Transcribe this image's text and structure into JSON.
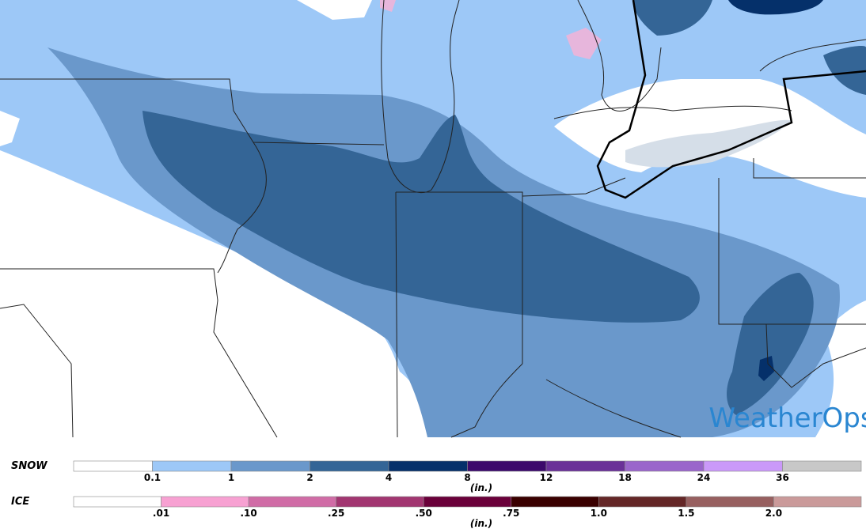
{
  "map": {
    "logo": "WeatherOps"
  },
  "legends": [
    {
      "title": "SNOW",
      "unit": "(in.)",
      "ticks": [
        "0.1",
        "1",
        "2",
        "4",
        "8",
        "12",
        "18",
        "24",
        "36"
      ],
      "colors": [
        "#ffffff",
        "#9dc8f7",
        "#6a98cb",
        "#346596",
        "#05306a",
        "#3c0a6b",
        "#6a3198",
        "#9a66cb",
        "#ca99f9",
        "#c8c8c8"
      ]
    },
    {
      "title": "ICE",
      "unit": "(in.)",
      "ticks": [
        ".01",
        ".10",
        ".25",
        ".50",
        ".75",
        "1.0",
        "1.5",
        "2.0"
      ],
      "colors": [
        "#ffffff",
        "#f7a1d2",
        "#d06ca6",
        "#a23671",
        "#6a003a",
        "#3a0000",
        "#642727",
        "#976060",
        "#ca9a9a"
      ]
    }
  ]
}
